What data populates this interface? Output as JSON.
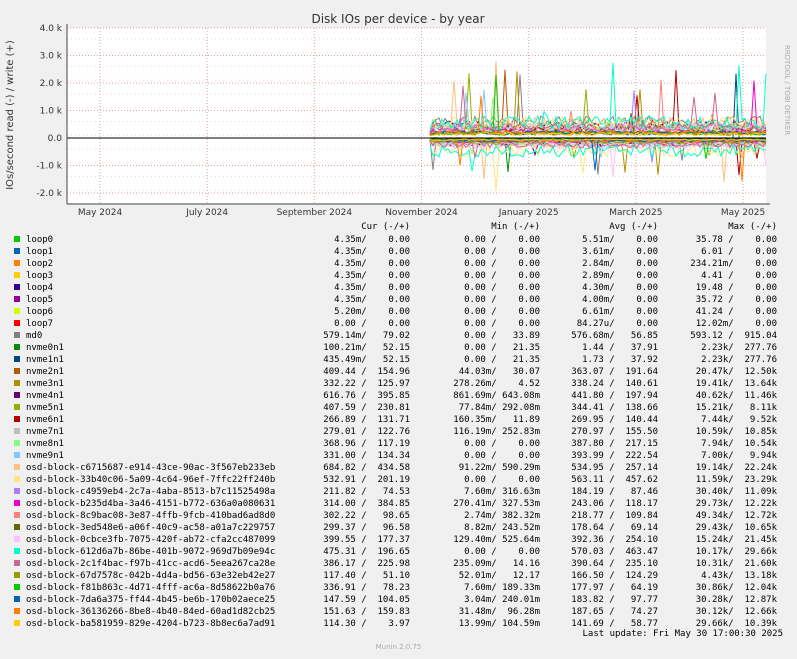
{
  "chart_data": {
    "type": "line",
    "title": "Disk IOs per device - by year",
    "ylabel": "IOs/second read (-) / write (+)",
    "watermark": "RRDTOOL / TOBI OETIKER",
    "ylim": [
      -2400,
      4000
    ],
    "yticks": [
      {
        "value": 4000,
        "label": "4.0 k"
      },
      {
        "value": 3000,
        "label": "3.0 k"
      },
      {
        "value": 2000,
        "label": "2.0 k"
      },
      {
        "value": 1000,
        "label": "1.0 k"
      },
      {
        "value": 0,
        "label": "0.0"
      },
      {
        "value": -1000,
        "label": "-1.0 k"
      },
      {
        "value": -2000,
        "label": "-2.0 k"
      }
    ],
    "xlabels": [
      "May 2024",
      "July 2024",
      "September 2024",
      "November 2024",
      "January 2025",
      "March 2025",
      "May 2025"
    ],
    "columns": [
      "Cur (-/+)",
      "Min (-/+)",
      "Avg (-/+)",
      "Max (-/+)"
    ],
    "series": [
      {
        "name": "loop0",
        "color": "#00cc00",
        "cur": [
          "4.35m/",
          "0.00"
        ],
        "min": [
          "0.00 /",
          "0.00"
        ],
        "avg": [
          "5.51m/",
          "0.00"
        ],
        "max": [
          "35.78 /",
          "0.00"
        ]
      },
      {
        "name": "loop1",
        "color": "#0066b3",
        "cur": [
          "4.35m/",
          "0.00"
        ],
        "min": [
          "0.00 /",
          "0.00"
        ],
        "avg": [
          "3.61m/",
          "0.00"
        ],
        "max": [
          "6.01 /",
          "0.00"
        ]
      },
      {
        "name": "loop2",
        "color": "#ff8000",
        "cur": [
          "4.35m/",
          "0.00"
        ],
        "min": [
          "0.00 /",
          "0.00"
        ],
        "avg": [
          "2.84m/",
          "0.00"
        ],
        "max": [
          "234.21m/",
          "0.00"
        ]
      },
      {
        "name": "loop3",
        "color": "#ffcc00",
        "cur": [
          "4.35m/",
          "0.00"
        ],
        "min": [
          "0.00 /",
          "0.00"
        ],
        "avg": [
          "2.89m/",
          "0.00"
        ],
        "max": [
          "4.41 /",
          "0.00"
        ]
      },
      {
        "name": "loop4",
        "color": "#330099",
        "cur": [
          "4.35m/",
          "0.00"
        ],
        "min": [
          "0.00 /",
          "0.00"
        ],
        "avg": [
          "4.30m/",
          "0.00"
        ],
        "max": [
          "19.48 /",
          "0.00"
        ]
      },
      {
        "name": "loop5",
        "color": "#990099",
        "cur": [
          "4.35m/",
          "0.00"
        ],
        "min": [
          "0.00 /",
          "0.00"
        ],
        "avg": [
          "4.00m/",
          "0.00"
        ],
        "max": [
          "35.72 /",
          "0.00"
        ]
      },
      {
        "name": "loop6",
        "color": "#ccff00",
        "cur": [
          "5.20m/",
          "0.00"
        ],
        "min": [
          "0.00 /",
          "0.00"
        ],
        "avg": [
          "6.61m/",
          "0.00"
        ],
        "max": [
          "41.24 /",
          "0.00"
        ]
      },
      {
        "name": "loop7",
        "color": "#ff0000",
        "cur": [
          "0.00 /",
          "0.00"
        ],
        "min": [
          "0.00 /",
          "0.00"
        ],
        "avg": [
          "84.27u/",
          "0.00"
        ],
        "max": [
          "12.02m/",
          "0.00"
        ]
      },
      {
        "name": "md0",
        "color": "#808080",
        "cur": [
          "579.14m/",
          "79.02"
        ],
        "min": [
          "0.00 /",
          "33.89"
        ],
        "avg": [
          "576.68m/",
          "56.85"
        ],
        "max": [
          "593.12 /",
          "915.04"
        ]
      },
      {
        "name": "nvme0n1",
        "color": "#008f00",
        "cur": [
          "100.21m/",
          "52.15"
        ],
        "min": [
          "0.00 /",
          "21.35"
        ],
        "avg": [
          "1.44 /",
          "37.91"
        ],
        "max": [
          "2.23k/",
          "277.76"
        ]
      },
      {
        "name": "nvme1n1",
        "color": "#00487d",
        "cur": [
          "435.49m/",
          "52.15"
        ],
        "min": [
          "0.00 /",
          "21.35"
        ],
        "avg": [
          "1.73 /",
          "37.92"
        ],
        "max": [
          "2.23k/",
          "277.76"
        ]
      },
      {
        "name": "nvme2n1",
        "color": "#b35a00",
        "cur": [
          "409.44 /",
          "154.96"
        ],
        "min": [
          "44.03m/",
          "30.07"
        ],
        "avg": [
          "363.07 /",
          "191.64"
        ],
        "max": [
          "20.47k/",
          "12.50k"
        ]
      },
      {
        "name": "nvme3n1",
        "color": "#b38f00",
        "cur": [
          "332.22 /",
          "125.97"
        ],
        "min": [
          "278.26m/",
          "4.52"
        ],
        "avg": [
          "338.24 /",
          "140.61"
        ],
        "max": [
          "19.41k/",
          "13.64k"
        ]
      },
      {
        "name": "nvme4n1",
        "color": "#6b006b",
        "cur": [
          "616.76 /",
          "395.85"
        ],
        "min": [
          "861.69m/",
          "643.08m"
        ],
        "avg": [
          "441.80 /",
          "197.94"
        ],
        "max": [
          "40.62k/",
          "11.46k"
        ]
      },
      {
        "name": "nvme5n1",
        "color": "#8fb300",
        "cur": [
          "407.59 /",
          "230.81"
        ],
        "min": [
          "77.84m/",
          "292.08m"
        ],
        "avg": [
          "344.41 /",
          "138.66"
        ],
        "max": [
          "15.21k/",
          "8.11k"
        ]
      },
      {
        "name": "nvme6n1",
        "color": "#b30000",
        "cur": [
          "266.89 /",
          "131.71"
        ],
        "min": [
          "160.35m/",
          "11.89"
        ],
        "avg": [
          "269.95 /",
          "140.44"
        ],
        "max": [
          "7.44k/",
          "9.52k"
        ]
      },
      {
        "name": "nvme7n1",
        "color": "#bebebe",
        "cur": [
          "279.01 /",
          "122.76"
        ],
        "min": [
          "116.19m/",
          "252.83m"
        ],
        "avg": [
          "270.97 /",
          "155.50"
        ],
        "max": [
          "10.59k/",
          "10.85k"
        ]
      },
      {
        "name": "nvme8n1",
        "color": "#80ff80",
        "cur": [
          "368.96 /",
          "117.19"
        ],
        "min": [
          "0.00 /",
          "0.00"
        ],
        "avg": [
          "387.80 /",
          "217.15"
        ],
        "max": [
          "7.94k/",
          "10.54k"
        ]
      },
      {
        "name": "nvme9n1",
        "color": "#80c9ff",
        "cur": [
          "331.00 /",
          "134.34"
        ],
        "min": [
          "0.00 /",
          "0.00"
        ],
        "avg": [
          "393.99 /",
          "222.54"
        ],
        "max": [
          "7.00k/",
          "9.94k"
        ]
      },
      {
        "name": "osd-block-c6715687-e914-43ce-90ac-3f567eb233eb",
        "color": "#ffc080",
        "cur": [
          "684.82 /",
          "434.58"
        ],
        "min": [
          "91.22m/",
          "590.29m"
        ],
        "avg": [
          "534.95 /",
          "257.14"
        ],
        "max": [
          "19.14k/",
          "22.24k"
        ]
      },
      {
        "name": "osd-block-33b40c06-5a09-4c64-96ef-7ffc22ff240b",
        "color": "#ffe680",
        "cur": [
          "532.91 /",
          "201.19"
        ],
        "min": [
          "0.00 /",
          "0.00"
        ],
        "avg": [
          "563.11 /",
          "457.62"
        ],
        "max": [
          "11.59k/",
          "23.29k"
        ]
      },
      {
        "name": "osd-block-c4959eb4-2c7a-4aba-8513-b7c11525498a",
        "color": "#aa80ff",
        "cur": [
          "211.82 /",
          "74.53"
        ],
        "min": [
          "7.60m/",
          "316.63m"
        ],
        "avg": [
          "184.19 /",
          "87.46"
        ],
        "max": [
          "30.40k/",
          "11.09k"
        ]
      },
      {
        "name": "osd-block-b235d4ba-3a46-4151-b772-636a0a080631",
        "color": "#ee00cc",
        "cur": [
          "314.00 /",
          "384.85"
        ],
        "min": [
          "270.41m/",
          "327.53m"
        ],
        "avg": [
          "243.06 /",
          "118.17"
        ],
        "max": [
          "29.73k/",
          "12.22k"
        ]
      },
      {
        "name": "osd-block-8c9bac08-3e87-4ffb-9fcb-410bad6ad8d0",
        "color": "#ff8080",
        "cur": [
          "302.22 /",
          "98.65"
        ],
        "min": [
          "2.74m/",
          "382.32m"
        ],
        "avg": [
          "218.77 /",
          "109.84"
        ],
        "max": [
          "49.34k/",
          "12.72k"
        ]
      },
      {
        "name": "osd-block-3ed548e6-a06f-40c9-ac58-a01a7c229757",
        "color": "#666600",
        "cur": [
          "299.37 /",
          "96.58"
        ],
        "min": [
          "8.82m/",
          "243.52m"
        ],
        "avg": [
          "178.64 /",
          "69.14"
        ],
        "max": [
          "29.43k/",
          "10.65k"
        ]
      },
      {
        "name": "osd-block-0cbce3fb-7075-420f-ab72-cfa2cc487099",
        "color": "#ffbfff",
        "cur": [
          "399.55 /",
          "177.37"
        ],
        "min": [
          "129.40m/",
          "525.64m"
        ],
        "avg": [
          "392.36 /",
          "254.10"
        ],
        "max": [
          "15.24k/",
          "21.45k"
        ]
      },
      {
        "name": "osd-block-612d6a7b-86be-401b-9072-969d7b09e94c",
        "color": "#00ffcc",
        "cur": [
          "475.31 /",
          "196.65"
        ],
        "min": [
          "0.00 /",
          "0.00"
        ],
        "avg": [
          "570.03 /",
          "463.47"
        ],
        "max": [
          "10.17k/",
          "29.66k"
        ]
      },
      {
        "name": "osd-block-2c1f4bac-f97b-41cc-acd6-5eea267ca28e",
        "color": "#cc6699",
        "cur": [
          "386.17 /",
          "225.98"
        ],
        "min": [
          "235.09m/",
          "14.16"
        ],
        "avg": [
          "390.64 /",
          "235.10"
        ],
        "max": [
          "10.31k/",
          "21.60k"
        ]
      },
      {
        "name": "osd-block-67d7578c-042b-4d4a-bd56-63e32eb42e27",
        "color": "#999900",
        "cur": [
          "117.40 /",
          "51.10"
        ],
        "min": [
          "52.01m/",
          "12.17"
        ],
        "avg": [
          "166.50 /",
          "124.29"
        ],
        "max": [
          "4.43k/",
          "13.18k"
        ]
      },
      {
        "name": "osd-block-f81b863c-4d71-4fff-ac6a-8d58622b0a76",
        "color": "#00cc00",
        "cur": [
          "336.91 /",
          "78.23"
        ],
        "min": [
          "7.60m/",
          "189.33m"
        ],
        "avg": [
          "177.97 /",
          "64.19"
        ],
        "max": [
          "30.86k/",
          "12.04k"
        ]
      },
      {
        "name": "osd-block-7da6a375-ff44-4b45-be6b-170b02aece25",
        "color": "#0066b3",
        "cur": [
          "147.59 /",
          "104.05"
        ],
        "min": [
          "3.04m/",
          "240.01m"
        ],
        "avg": [
          "183.82 /",
          "97.77"
        ],
        "max": [
          "30.28k/",
          "12.87k"
        ]
      },
      {
        "name": "osd-block-36136266-8be8-4b40-84ed-60ad1d82cb25",
        "color": "#ff8000",
        "cur": [
          "151.63 /",
          "159.83"
        ],
        "min": [
          "31.48m/",
          "96.28m"
        ],
        "avg": [
          "187.65 /",
          "74.27"
        ],
        "max": [
          "30.12k/",
          "12.66k"
        ]
      },
      {
        "name": "osd-block-ba581959-829e-4204-b723-8b8ec6a7ad91",
        "color": "#ffcc00",
        "cur": [
          "114.30 /",
          "3.97"
        ],
        "min": [
          "13.99m/",
          "104.59m"
        ],
        "avg": [
          "141.69 /",
          "58.77"
        ],
        "max": [
          "29.66k/",
          "10.39k"
        ]
      }
    ],
    "annotations": {
      "spike_labels": []
    }
  },
  "footer": {
    "last_update": "Last update: Fri May 30 17:00:30 2025",
    "version": "Munin 2.0.75"
  }
}
